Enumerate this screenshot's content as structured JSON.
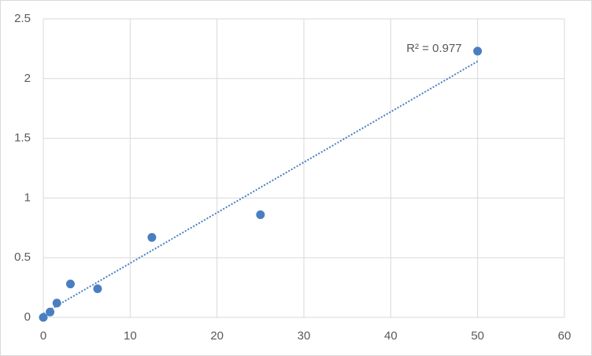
{
  "chart_data": {
    "type": "scatter",
    "x": [
      0,
      0.78,
      1.56,
      3.125,
      6.25,
      12.5,
      25,
      50
    ],
    "series": [
      {
        "color": "#4a7ec2",
        "values": [
          0,
          0.045,
          0.12,
          0.28,
          0.24,
          0.67,
          0.86,
          2.23
        ]
      }
    ],
    "xlim": [
      0,
      60
    ],
    "xticks": [
      0,
      10,
      20,
      30,
      40,
      50,
      60
    ],
    "ylim": [
      0,
      2.5
    ],
    "yticks": [
      0,
      0.5,
      1,
      1.5,
      2,
      2.5
    ],
    "grid": true,
    "trendline": {
      "type": "linear",
      "label": "R² = 0.977",
      "color": "#4a7ec2"
    }
  }
}
